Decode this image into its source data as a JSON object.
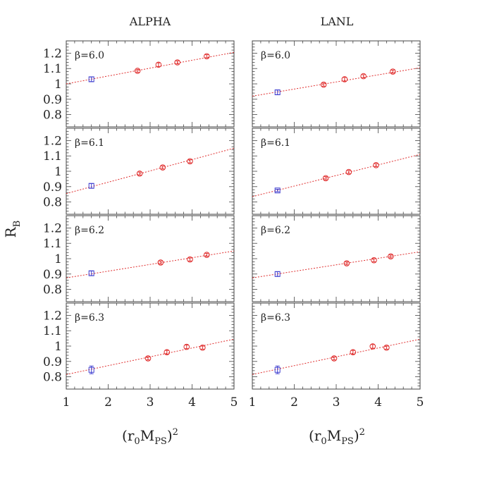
{
  "figure": {
    "column_titles": [
      "ALPHA",
      "LANL"
    ],
    "ylabel": "R",
    "ylabel_sub": "B",
    "xlabel": {
      "open": "(r",
      "sub0": "0",
      "m": "M",
      "subPS": "PS",
      "close": ")",
      "sup": "2"
    },
    "x_ticks": [
      "1",
      "2",
      "3",
      "4",
      "5"
    ],
    "y_ticks": [
      "0.8",
      "0.9",
      "1",
      "1.1",
      "1.2"
    ]
  },
  "chart_data": {
    "type": "scatter",
    "xlim": [
      1,
      5
    ],
    "ylim": [
      0.72,
      1.28
    ],
    "colors": {
      "fit": "#e03030",
      "circle": "#e03030",
      "square": "#4040d0"
    },
    "panels": [
      {
        "column": "ALPHA",
        "beta_label": "β=6.0",
        "square": {
          "x": 1.6,
          "y": 1.03,
          "err": 0.015
        },
        "circles": [
          {
            "x": 2.7,
            "y": 1.085,
            "err": 0.01
          },
          {
            "x": 3.2,
            "y": 1.125,
            "err": 0.012
          },
          {
            "x": 3.65,
            "y": 1.14,
            "err": 0.01
          },
          {
            "x": 4.35,
            "y": 1.18,
            "err": 0.01
          }
        ],
        "fit": {
          "x": [
            1,
            5
          ],
          "y": [
            1.0,
            1.205
          ]
        }
      },
      {
        "column": "LANL",
        "beta_label": "β=6.0",
        "square": {
          "x": 1.6,
          "y": 0.945,
          "err": 0.015
        },
        "circles": [
          {
            "x": 2.7,
            "y": 0.995,
            "err": 0.01
          },
          {
            "x": 3.2,
            "y": 1.03,
            "err": 0.012
          },
          {
            "x": 3.65,
            "y": 1.05,
            "err": 0.01
          },
          {
            "x": 4.35,
            "y": 1.08,
            "err": 0.01
          }
        ],
        "fit": {
          "x": [
            1,
            5
          ],
          "y": [
            0.92,
            1.105
          ]
        }
      },
      {
        "column": "ALPHA",
        "beta_label": "β=6.1",
        "square": {
          "x": 1.6,
          "y": 0.905,
          "err": 0.015
        },
        "circles": [
          {
            "x": 2.75,
            "y": 0.985,
            "err": 0.01
          },
          {
            "x": 3.3,
            "y": 1.025,
            "err": 0.01
          },
          {
            "x": 3.95,
            "y": 1.065,
            "err": 0.01
          }
        ],
        "fit": {
          "x": [
            1,
            5
          ],
          "y": [
            0.855,
            1.15
          ]
        }
      },
      {
        "column": "LANL",
        "beta_label": "β=6.1",
        "square": {
          "x": 1.6,
          "y": 0.875,
          "err": 0.008
        },
        "circles": [
          {
            "x": 2.75,
            "y": 0.955,
            "err": 0.01
          },
          {
            "x": 3.3,
            "y": 0.995,
            "err": 0.01
          },
          {
            "x": 3.95,
            "y": 1.04,
            "err": 0.01
          }
        ],
        "fit": {
          "x": [
            1,
            5
          ],
          "y": [
            0.835,
            1.11
          ]
        }
      },
      {
        "column": "ALPHA",
        "beta_label": "β=6.2",
        "square": {
          "x": 1.6,
          "y": 0.905,
          "err": 0.015
        },
        "circles": [
          {
            "x": 3.25,
            "y": 0.975,
            "err": 0.01
          },
          {
            "x": 3.95,
            "y": 0.995,
            "err": 0.01
          },
          {
            "x": 4.35,
            "y": 1.025,
            "err": 0.01
          }
        ],
        "fit": {
          "x": [
            1,
            5
          ],
          "y": [
            0.875,
            1.05
          ]
        }
      },
      {
        "column": "LANL",
        "beta_label": "β=6.2",
        "square": {
          "x": 1.6,
          "y": 0.9,
          "err": 0.015
        },
        "circles": [
          {
            "x": 3.25,
            "y": 0.97,
            "err": 0.01
          },
          {
            "x": 3.9,
            "y": 0.99,
            "err": 0.01
          },
          {
            "x": 4.3,
            "y": 1.015,
            "err": 0.01
          }
        ],
        "fit": {
          "x": [
            1,
            5
          ],
          "y": [
            0.875,
            1.045
          ]
        }
      },
      {
        "column": "ALPHA",
        "beta_label": "β=6.3",
        "square": {
          "x": 1.6,
          "y": 0.845,
          "err": 0.025
        },
        "circles": [
          {
            "x": 2.95,
            "y": 0.92,
            "err": 0.01
          },
          {
            "x": 3.4,
            "y": 0.96,
            "err": 0.012
          },
          {
            "x": 3.87,
            "y": 0.995,
            "err": 0.012
          },
          {
            "x": 4.25,
            "y": 0.99,
            "err": 0.01
          }
        ],
        "fit": {
          "x": [
            1,
            5
          ],
          "y": [
            0.815,
            1.045
          ]
        }
      },
      {
        "column": "LANL",
        "beta_label": "β=6.3",
        "square": {
          "x": 1.6,
          "y": 0.845,
          "err": 0.025
        },
        "circles": [
          {
            "x": 2.95,
            "y": 0.92,
            "err": 0.01
          },
          {
            "x": 3.4,
            "y": 0.96,
            "err": 0.012
          },
          {
            "x": 3.87,
            "y": 0.998,
            "err": 0.012
          },
          {
            "x": 4.2,
            "y": 0.99,
            "err": 0.01
          }
        ],
        "fit": {
          "x": [
            1,
            5
          ],
          "y": [
            0.815,
            1.045
          ]
        }
      }
    ]
  }
}
